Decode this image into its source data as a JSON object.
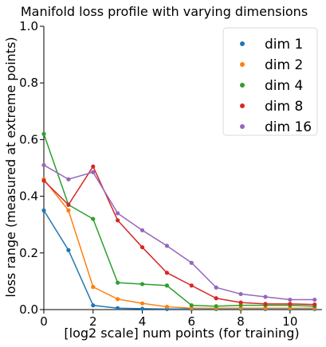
{
  "chart_data": {
    "type": "line",
    "title": "Manifold loss profile with varying dimensions",
    "xlabel": "[log2 scale] num points (for training)",
    "ylabel": "loss range (measured at extreme points)",
    "xlim": [
      0,
      11.3
    ],
    "ylim": [
      0,
      1.0
    ],
    "xticks": [
      0,
      2,
      4,
      6,
      8,
      10
    ],
    "yticks": [
      0.0,
      0.2,
      0.4,
      0.6,
      0.8,
      1.0
    ],
    "grid": false,
    "legend_position": "top-right",
    "x": [
      0,
      1,
      2,
      3,
      4,
      5,
      6,
      7,
      8,
      9,
      10,
      11
    ],
    "series": [
      {
        "name": "dim 1",
        "color": "#1f77b4",
        "values": [
          0.35,
          0.21,
          0.015,
          0.005,
          0.003,
          0.002,
          0.002,
          0.002,
          0.002,
          0.002,
          0.002,
          0.002
        ]
      },
      {
        "name": "dim 2",
        "color": "#ff7f0e",
        "values": [
          0.46,
          0.35,
          0.08,
          0.037,
          0.022,
          0.01,
          0.005,
          0.005,
          0.005,
          0.005,
          0.005,
          0.005
        ]
      },
      {
        "name": "dim 4",
        "color": "#2ca02c",
        "values": [
          0.62,
          0.37,
          0.32,
          0.095,
          0.09,
          0.085,
          0.015,
          0.012,
          0.015,
          0.015,
          0.015,
          0.012
        ]
      },
      {
        "name": "dim 8",
        "color": "#d62728",
        "values": [
          0.455,
          0.37,
          0.505,
          0.315,
          0.22,
          0.13,
          0.085,
          0.04,
          0.025,
          0.02,
          0.02,
          0.018
        ]
      },
      {
        "name": "dim 16",
        "color": "#9467bd",
        "values": [
          0.51,
          0.46,
          0.485,
          0.34,
          0.28,
          0.225,
          0.165,
          0.078,
          0.055,
          0.045,
          0.035,
          0.035
        ]
      }
    ]
  }
}
